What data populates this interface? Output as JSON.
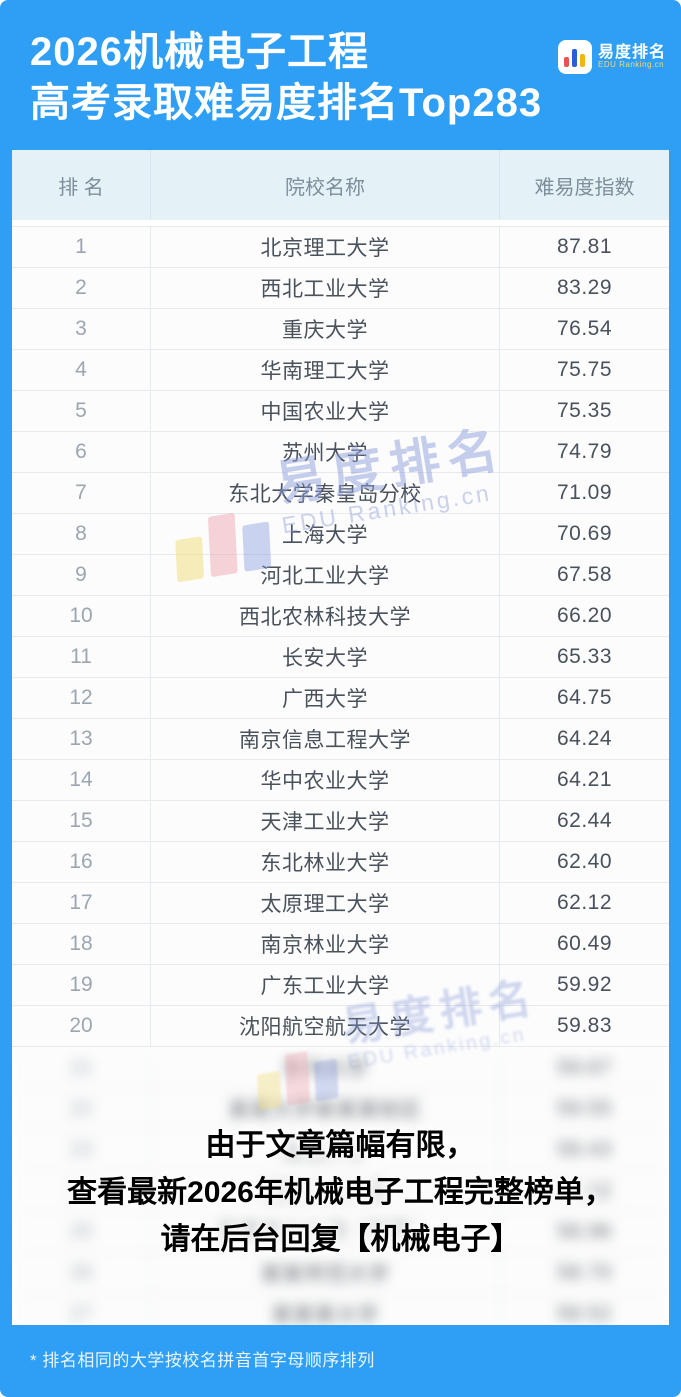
{
  "header": {
    "title_line1": "2026机械电子工程",
    "title_line2": "高考录取难易度排名Top283",
    "logo": {
      "cn": "易度排名",
      "en": "EDU Ranking.cn"
    }
  },
  "table": {
    "columns": [
      "排 名",
      "院校名称",
      "难易度指数"
    ],
    "rows": [
      [
        "1",
        "北京理工大学",
        "87.81"
      ],
      [
        "2",
        "西北工业大学",
        "83.29"
      ],
      [
        "3",
        "重庆大学",
        "76.54"
      ],
      [
        "4",
        "华南理工大学",
        "75.75"
      ],
      [
        "5",
        "中国农业大学",
        "75.35"
      ],
      [
        "6",
        "苏州大学",
        "74.79"
      ],
      [
        "7",
        "东北大学秦皇岛分校",
        "71.09"
      ],
      [
        "8",
        "上海大学",
        "70.69"
      ],
      [
        "9",
        "河北工业大学",
        "67.58"
      ],
      [
        "10",
        "西北农林科技大学",
        "66.20"
      ],
      [
        "11",
        "长安大学",
        "65.33"
      ],
      [
        "12",
        "广西大学",
        "64.75"
      ],
      [
        "13",
        "南京信息工程大学",
        "64.24"
      ],
      [
        "14",
        "华中农业大学",
        "64.21"
      ],
      [
        "15",
        "天津工业大学",
        "62.44"
      ],
      [
        "16",
        "东北林业大学",
        "62.40"
      ],
      [
        "17",
        "太原理工大学",
        "62.12"
      ],
      [
        "18",
        "南京林业大学",
        "60.49"
      ],
      [
        "19",
        "广东工业大学",
        "59.92"
      ],
      [
        "20",
        "沈阳航空航天大学",
        "59.83"
      ]
    ],
    "obscured_rows_note": "rows below rank 20 are blurred/illegible in the source image",
    "obscured_rows": [
      [
        "21",
        "东华大学",
        "59.67"
      ],
      [
        "22",
        "某某大学某某某校区",
        "59.55"
      ],
      [
        "23",
        "某某大学",
        "59.43"
      ],
      [
        "24",
        "某某工业大学",
        "59.12"
      ],
      [
        "25",
        "某某电力大学（某某）",
        "58.96"
      ],
      [
        "26",
        "某某师范大学",
        "58.70"
      ],
      [
        "27",
        "某某某大学",
        "58.52"
      ]
    ]
  },
  "watermark": {
    "cn": "易度排名",
    "en": "EDU Ranking.cn"
  },
  "overlay": {
    "line1": "由于文章篇幅有限，",
    "line2": "查看最新2026年机械电子工程完整榜单，",
    "line3": "请在后台回复【机械电子】"
  },
  "footer": {
    "note": "* 排名相同的大学按校名拼音首字母顺序排列"
  },
  "colors": {
    "page_blue": "#2f9ff5",
    "table_header_bg": "#e4f1f7",
    "header_text": "#7e8e9a",
    "rank_text": "#9ca6b0",
    "body_text": "#49525c",
    "watermark_blue": "#8c9eda",
    "logo_accent_yellow": "#ffd36b"
  },
  "chart_data": {
    "type": "table",
    "title": "2026机械电子工程 高考录取难易度排名Top283",
    "columns": [
      "排 名",
      "院校名称",
      "难易度指数"
    ],
    "categories": [
      "北京理工大学",
      "西北工业大学",
      "重庆大学",
      "华南理工大学",
      "中国农业大学",
      "苏州大学",
      "东北大学秦皇岛分校",
      "上海大学",
      "河北工业大学",
      "西北农林科技大学",
      "长安大学",
      "广西大学",
      "南京信息工程大学",
      "华中农业大学",
      "天津工业大学",
      "东北林业大学",
      "太原理工大学",
      "南京林业大学",
      "广东工业大学",
      "沈阳航空航天大学"
    ],
    "values": [
      87.81,
      83.29,
      76.54,
      75.75,
      75.35,
      74.79,
      71.09,
      70.69,
      67.58,
      66.2,
      65.33,
      64.75,
      64.24,
      64.21,
      62.44,
      62.4,
      62.12,
      60.49,
      59.92,
      59.83
    ],
    "ranks": [
      1,
      2,
      3,
      4,
      5,
      6,
      7,
      8,
      9,
      10,
      11,
      12,
      13,
      14,
      15,
      16,
      17,
      18,
      19,
      20
    ],
    "footnote": "* 排名相同的大学按校名拼音首字母顺序排列"
  }
}
